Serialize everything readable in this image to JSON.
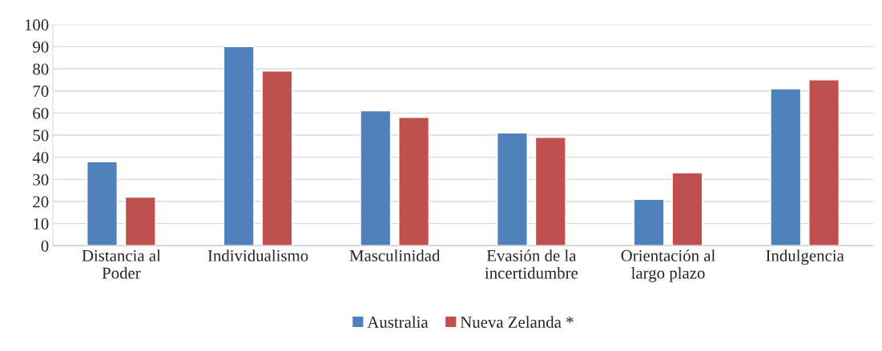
{
  "chart_data": {
    "type": "bar",
    "categories": [
      "Distancia al\nPoder",
      "Individualismo",
      "Masculinidad",
      "Evasión de la\nincertidumbre",
      "Orientación al\nlargo plazo",
      "Indulgencia"
    ],
    "series": [
      {
        "name": "Australia",
        "color": "#4f81bd",
        "values": [
          38,
          90,
          61,
          51,
          21,
          71
        ]
      },
      {
        "name": "Nueva Zelanda *",
        "color": "#c0504d",
        "values": [
          22,
          79,
          58,
          49,
          33,
          75
        ]
      }
    ],
    "ylim": [
      0,
      100
    ],
    "yticks": [
      0,
      10,
      20,
      30,
      40,
      50,
      60,
      70,
      80,
      90,
      100
    ],
    "grid": "y",
    "legend": "bottom"
  }
}
